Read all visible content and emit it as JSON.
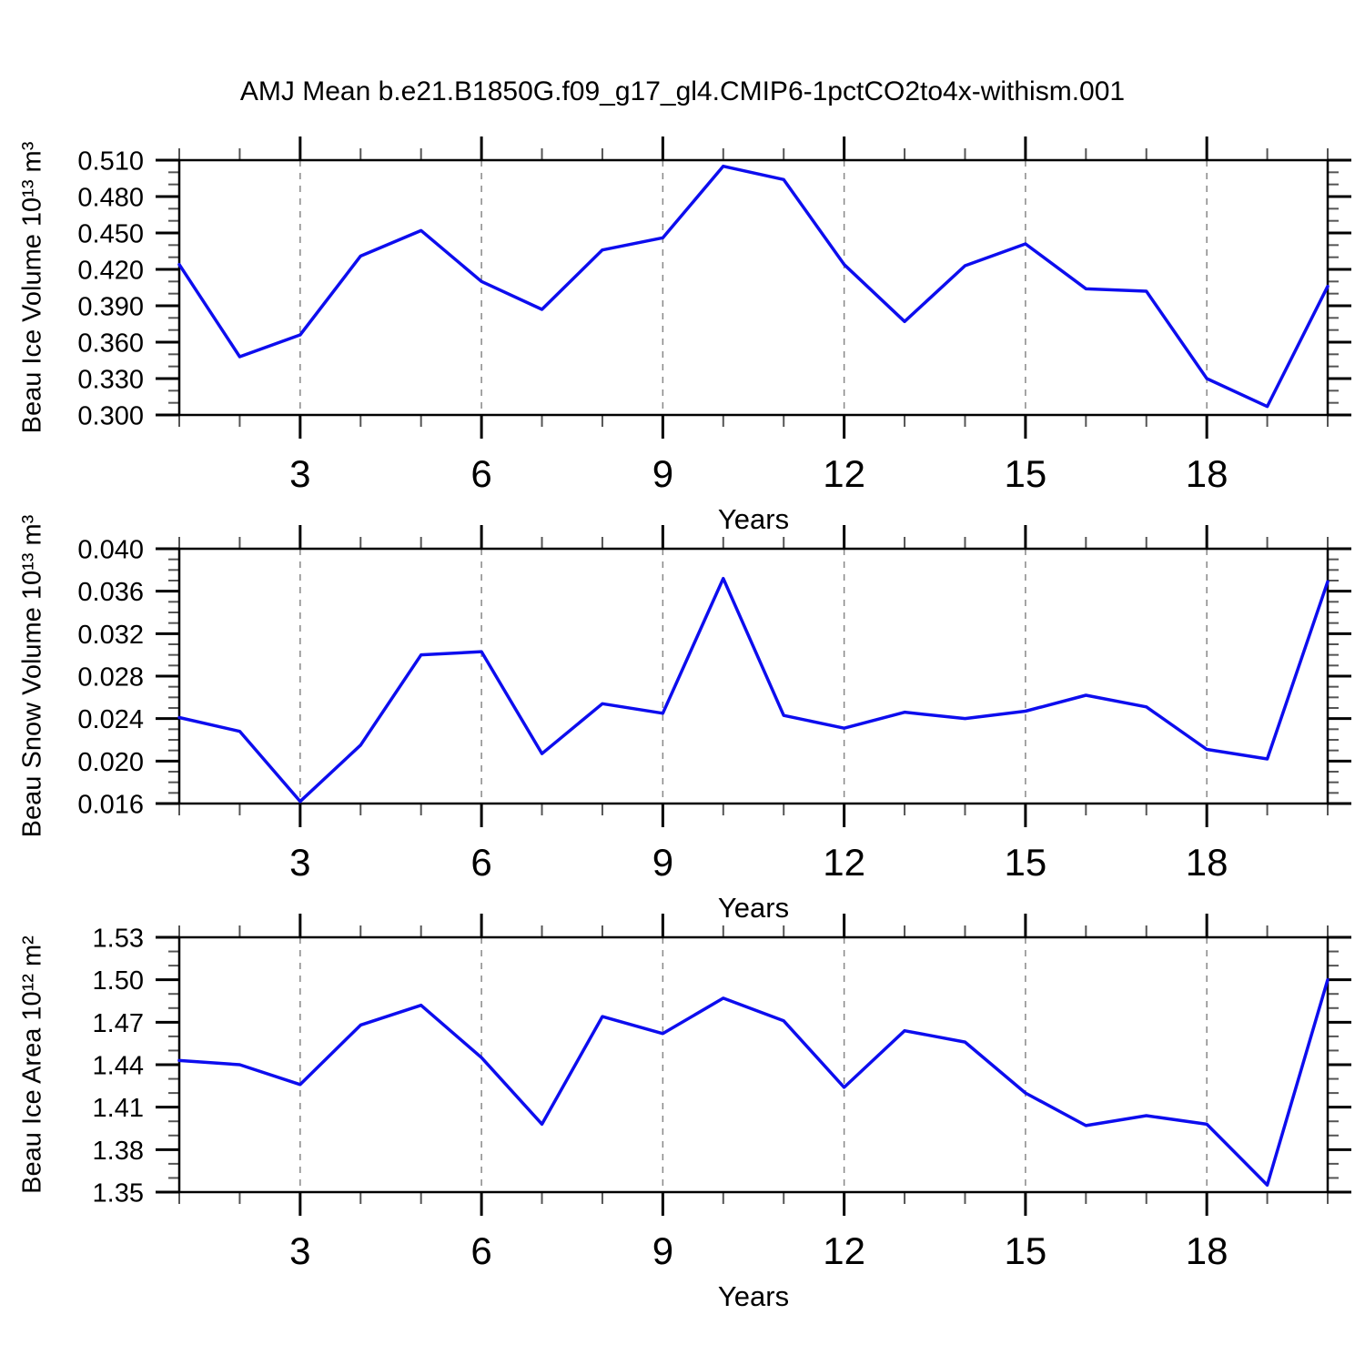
{
  "title": "AMJ Mean b.e21.B1850G.f09_g17_gl4.CMIP6-1pctCO2to4x-withism.001",
  "figure": {
    "background_color": "#ffffff",
    "line_color": "#0d0dee",
    "frame_color": "#000000",
    "grid_color": "#888888",
    "major_tick_color": "#000000",
    "minor_tick_color": "#555555"
  },
  "chart_data": [
    {
      "type": "line",
      "ylabel": "Beau Ice Volume 10¹³ m³",
      "xlabel": "Years",
      "x": [
        1,
        2,
        3,
        4,
        5,
        6,
        7,
        8,
        9,
        10,
        11,
        12,
        13,
        14,
        15,
        16,
        17,
        18,
        19,
        20
      ],
      "values": [
        0.424,
        0.348,
        0.366,
        0.431,
        0.452,
        0.41,
        0.387,
        0.436,
        0.446,
        0.505,
        0.494,
        0.424,
        0.377,
        0.423,
        0.441,
        0.404,
        0.402,
        0.33,
        0.307,
        0.406
      ],
      "xlim": [
        1,
        20
      ],
      "ylim": [
        0.3,
        0.51
      ],
      "yticks": [
        0.3,
        0.33,
        0.36,
        0.39,
        0.42,
        0.45,
        0.48,
        0.51
      ],
      "ytick_labels": [
        "0.300",
        "0.330",
        "0.360",
        "0.390",
        "0.420",
        "0.450",
        "0.480",
        "0.510"
      ],
      "y_minor_step": 0.01,
      "xticks": [
        3,
        6,
        9,
        12,
        15,
        18
      ],
      "xtick_labels": [
        "3",
        "6",
        "9",
        "12",
        "15",
        "18"
      ],
      "x_minor_step": 1,
      "grid_x": [
        3,
        6,
        9,
        12,
        15,
        18
      ],
      "grid_style": "dashed",
      "legend": null
    },
    {
      "type": "line",
      "ylabel": "Beau Snow Volume 10¹³ m³",
      "xlabel": "Years",
      "x": [
        1,
        2,
        3,
        4,
        5,
        6,
        7,
        8,
        9,
        10,
        11,
        12,
        13,
        14,
        15,
        16,
        17,
        18,
        19,
        20
      ],
      "values": [
        0.0241,
        0.0228,
        0.0162,
        0.0215,
        0.03,
        0.0303,
        0.0207,
        0.0254,
        0.0245,
        0.0372,
        0.0243,
        0.0231,
        0.0246,
        0.024,
        0.0247,
        0.0262,
        0.0251,
        0.0211,
        0.0202,
        0.0369
      ],
      "xlim": [
        1,
        20
      ],
      "ylim": [
        0.016,
        0.04
      ],
      "yticks": [
        0.016,
        0.02,
        0.024,
        0.028,
        0.032,
        0.036,
        0.04
      ],
      "ytick_labels": [
        "0.016",
        "0.020",
        "0.024",
        "0.028",
        "0.032",
        "0.036",
        "0.040"
      ],
      "y_minor_step": 0.001,
      "xticks": [
        3,
        6,
        9,
        12,
        15,
        18
      ],
      "xtick_labels": [
        "3",
        "6",
        "9",
        "12",
        "15",
        "18"
      ],
      "x_minor_step": 1,
      "grid_x": [
        3,
        6,
        9,
        12,
        15,
        18
      ],
      "grid_style": "dashed",
      "legend": null
    },
    {
      "type": "line",
      "ylabel": "Beau Ice Area 10¹² m²",
      "xlabel": "Years",
      "x": [
        1,
        2,
        3,
        4,
        5,
        6,
        7,
        8,
        9,
        10,
        11,
        12,
        13,
        14,
        15,
        16,
        17,
        18,
        19,
        20
      ],
      "values": [
        1.443,
        1.44,
        1.426,
        1.468,
        1.482,
        1.445,
        1.398,
        1.474,
        1.462,
        1.487,
        1.471,
        1.424,
        1.464,
        1.456,
        1.42,
        1.397,
        1.404,
        1.398,
        1.355,
        1.5
      ],
      "xlim": [
        1,
        20
      ],
      "ylim": [
        1.35,
        1.53
      ],
      "yticks": [
        1.35,
        1.38,
        1.41,
        1.44,
        1.47,
        1.5,
        1.53
      ],
      "ytick_labels": [
        "1.35",
        "1.38",
        "1.41",
        "1.44",
        "1.47",
        "1.50",
        "1.53"
      ],
      "y_minor_step": 0.01,
      "xticks": [
        3,
        6,
        9,
        12,
        15,
        18
      ],
      "xtick_labels": [
        "3",
        "6",
        "9",
        "12",
        "15",
        "18"
      ],
      "x_minor_step": 1,
      "grid_x": [
        3,
        6,
        9,
        12,
        15,
        18
      ],
      "grid_style": "dashed",
      "legend": null
    }
  ]
}
